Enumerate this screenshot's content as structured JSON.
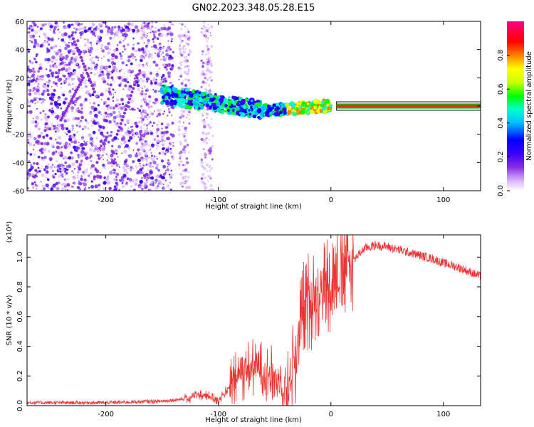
{
  "title": "GN02.2023.348.05.28.E15",
  "chart_data": [
    {
      "type": "heatmap",
      "name": "spectrogram",
      "xlabel": "Height of straight line (km)",
      "ylabel": "Frequency (Hz)",
      "xlim": [
        -270,
        133
      ],
      "ylim": [
        -60,
        60
      ],
      "xticks": [
        -200,
        -100,
        0,
        100
      ],
      "xtick_labels": [
        "-200",
        "-100",
        "0",
        "100"
      ],
      "yticks": [
        -60,
        -40,
        -20,
        0,
        20,
        40,
        60
      ],
      "ytick_labels": [
        "-60",
        "-40",
        "-20",
        "0",
        "20",
        "40",
        "60"
      ],
      "colorbar": {
        "label": "Normalized spectral amplitude",
        "range": [
          0,
          1
        ],
        "ticks": [
          0.0,
          0.2,
          0.4,
          0.6,
          0.8
        ],
        "tick_labels": [
          "0.0",
          "0.2",
          "0.4",
          "0.6",
          "0.8"
        ],
        "colors": [
          "#ffffff",
          "#d9b3ff",
          "#8a2be2",
          "#3a00ff",
          "#0000ff",
          "#00bfff",
          "#00ffcc",
          "#00ff00",
          "#ccff00",
          "#ffff00",
          "#ff8000",
          "#ff0000",
          "#ff0080"
        ]
      },
      "line": {
        "description": "narrow band near 0 Hz",
        "x_start": 5,
        "x_end": 133,
        "y": 0,
        "colors": [
          "#00c000",
          "#ff2020",
          "#ffff00"
        ]
      }
    },
    {
      "type": "line",
      "name": "snr",
      "xlabel": "Height of straight line (km)",
      "ylabel": "SNR (10 * v/v)",
      "y_multiplier": "(x10⁴)",
      "xlim": [
        -270,
        133
      ],
      "ylim": [
        0,
        1.15
      ],
      "xticks": [
        -200,
        -100,
        0,
        100
      ],
      "xtick_labels": [
        "-200",
        "-100",
        "0",
        "100"
      ],
      "yticks": [
        0.0,
        0.2,
        0.4,
        0.6,
        0.8,
        1.0
      ],
      "ytick_labels": [
        "0.0",
        "0.2",
        "0.4",
        "0.6",
        "0.8",
        "1.0"
      ],
      "color": "#ee3333",
      "x": [
        -270,
        -200,
        -150,
        -125,
        -120,
        -110,
        -100,
        -90,
        -80,
        -70,
        -60,
        -50,
        -40,
        -35,
        -30,
        -25,
        -20,
        -10,
        0,
        10,
        20,
        30,
        40,
        50,
        60,
        70,
        80,
        90,
        100,
        110,
        120,
        133
      ],
      "y": [
        0.02,
        0.02,
        0.03,
        0.05,
        0.08,
        0.06,
        0.04,
        0.12,
        0.22,
        0.26,
        0.24,
        0.2,
        0.1,
        0.22,
        0.4,
        0.62,
        0.7,
        0.78,
        0.84,
        0.9,
        0.98,
        1.06,
        1.08,
        1.07,
        1.05,
        1.03,
        1.01,
        0.99,
        0.96,
        0.94,
        0.91,
        0.87
      ]
    }
  ]
}
